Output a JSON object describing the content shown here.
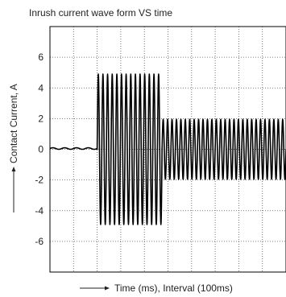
{
  "chart_data": {
    "type": "line",
    "title": "Inrush current wave form VS time",
    "xlabel": "Time (ms), Interval (100ms)",
    "ylabel": "Contact Current, A",
    "ylim": [
      -8,
      8
    ],
    "yticks": [
      6,
      4,
      2,
      0,
      -2,
      -4,
      -6
    ],
    "ytick_labels": [
      "6",
      "4",
      "2",
      "0",
      "-2",
      "-4",
      "-6"
    ],
    "xlim": [
      0,
      1000
    ],
    "x_grid_interval_ms": 100,
    "grid": true,
    "grid_style": "dotted",
    "series": [
      {
        "color": "#000000",
        "segments": [
          {
            "x_start": 0,
            "x_end": 200,
            "amplitude": 0.05,
            "offset": 0.05,
            "cycles": 4
          },
          {
            "x_start": 200,
            "x_end": 475,
            "amplitude": 4.9,
            "cycles": 14
          },
          {
            "x_start": 475,
            "x_end": 1000,
            "amplitude": 1.95,
            "cycles": 28
          }
        ]
      }
    ]
  }
}
